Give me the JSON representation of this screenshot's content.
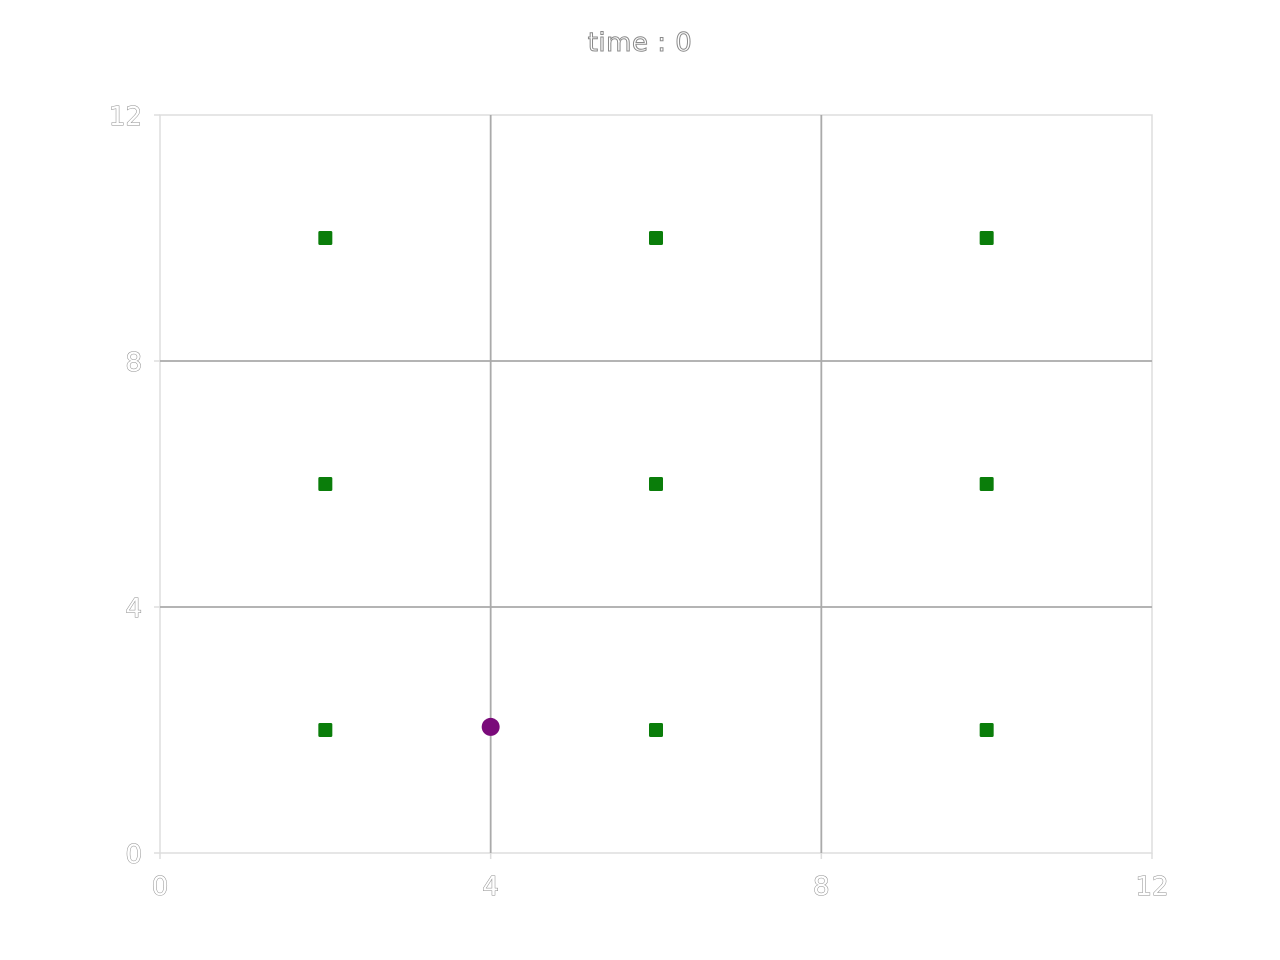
{
  "chart_data": {
    "type": "scatter",
    "title": "time : 0",
    "xlabel": "",
    "ylabel": "",
    "xlim": [
      0,
      12
    ],
    "ylim": [
      0,
      12
    ],
    "xticks": [
      0,
      4,
      8,
      12
    ],
    "yticks": [
      0,
      4,
      8,
      12
    ],
    "xtick_labels": [
      "0",
      "4",
      "8",
      "12"
    ],
    "ytick_labels": [
      "0",
      "4",
      "8",
      "12"
    ],
    "grid": true,
    "legend": "none",
    "series": [
      {
        "marker": "square",
        "color": "#0a7d0a",
        "points": [
          {
            "x": 2,
            "y": 10
          },
          {
            "x": 6,
            "y": 10
          },
          {
            "x": 10,
            "y": 10
          },
          {
            "x": 2,
            "y": 6
          },
          {
            "x": 6,
            "y": 6
          },
          {
            "x": 10,
            "y": 6
          },
          {
            "x": 2,
            "y": 2
          },
          {
            "x": 6,
            "y": 2
          },
          {
            "x": 10,
            "y": 2
          }
        ]
      },
      {
        "marker": "circle",
        "color": "#7a0a7a",
        "points": [
          {
            "x": 4,
            "y": 2.05
          }
        ]
      }
    ],
    "colors": {
      "grid": "#aaaaaa",
      "axis": "#dddddd",
      "text_outline": "#8a8a8a"
    }
  }
}
